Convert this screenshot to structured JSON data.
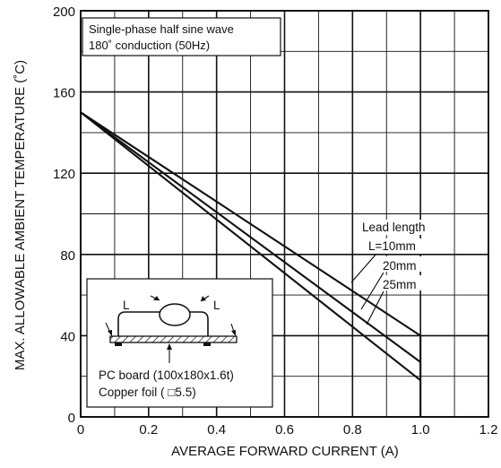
{
  "chart_data": {
    "type": "line",
    "xlabel": "AVERAGE FORWARD CURRENT (A)",
    "ylabel": "MAX. ALLOWABLE AMBIENT TEMPERATURE (˚C)",
    "xlim": [
      0,
      1.2
    ],
    "ylim": [
      0,
      200
    ],
    "x_ticks": [
      0,
      0.2,
      0.4,
      0.6,
      0.8,
      1.0,
      1.2
    ],
    "x_tick_labels": [
      "0",
      "0.2",
      "0.4",
      "0.6",
      "0.8",
      "1.0",
      "1.2"
    ],
    "y_ticks": [
      0,
      40,
      80,
      120,
      160,
      200
    ],
    "y_tick_labels": [
      "0",
      "40",
      "80",
      "120",
      "160",
      "200"
    ],
    "x_minor_step": 0.1,
    "y_minor_step": 20,
    "grid": true,
    "series": [
      {
        "name": "L=10mm",
        "x": [
          0,
          1.0,
          1.0
        ],
        "y": [
          150,
          40,
          0
        ]
      },
      {
        "name": "20mm",
        "x": [
          0,
          1.0
        ],
        "y": [
          150,
          27
        ]
      },
      {
        "name": "25mm",
        "x": [
          0,
          1.0
        ],
        "y": [
          150,
          18
        ]
      }
    ],
    "annotations": {
      "condition_line1": "Single-phase half sine wave",
      "condition_line2": "180˚ conduction (50Hz)",
      "legend_title": "Lead length"
    },
    "inset": {
      "lead_label_left": "L",
      "lead_label_right": "L",
      "board_label": "PC board (100x180x1.6t)",
      "foil_label": "Copper foil ( □5.5)"
    }
  }
}
